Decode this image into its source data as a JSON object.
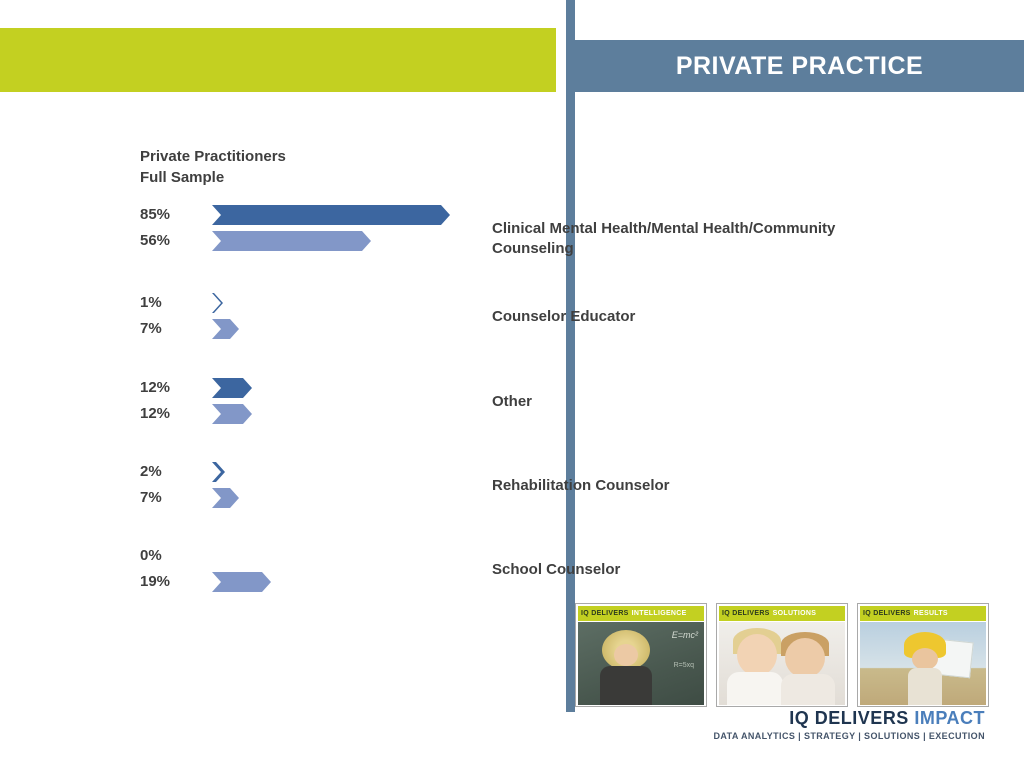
{
  "header": {
    "title": "PRIVATE PRACTICE",
    "banner_color": "#c3d021",
    "bar_color": "#5d7e9c"
  },
  "chart_data": {
    "type": "bar",
    "orientation": "horizontal",
    "title": "",
    "legend_position": "top-left",
    "categories": [
      "Clinical Mental Health/Mental Health/Community Counseling",
      "Counselor Educator",
      "Other",
      "Rehabilitation Counselor",
      "School Counselor"
    ],
    "series": [
      {
        "name": "Private Practitioners",
        "values": [
          85,
          1,
          12,
          2,
          0
        ],
        "color": "#3c66a0"
      },
      {
        "name": "Full Sample",
        "values": [
          56,
          7,
          12,
          7,
          19
        ],
        "color": "#8297c8"
      }
    ],
    "value_labels": [
      [
        "85%",
        "56%"
      ],
      [
        "1%",
        "7%"
      ],
      [
        "12%",
        "12%"
      ],
      [
        "2%",
        "7%"
      ],
      [
        "0%",
        "19%"
      ]
    ],
    "xlim": [
      0,
      100
    ],
    "grid": false
  },
  "footer": {
    "cards": [
      {
        "header_prefix": "IQ DELIVERS",
        "header_word": "INTELLIGENCE",
        "photo_text": "E=mc²",
        "photo_text2": "R=5xq"
      },
      {
        "header_prefix": "IQ DELIVERS",
        "header_word": "SOLUTIONS"
      },
      {
        "header_prefix": "IQ DELIVERS",
        "header_word": "RESULTS"
      }
    ],
    "brand": {
      "prefix": "IQ DELIVERS ",
      "word": "IMPACT"
    },
    "tagline": "DATA ANALYTICS | STRATEGY | SOLUTIONS | EXECUTION"
  }
}
